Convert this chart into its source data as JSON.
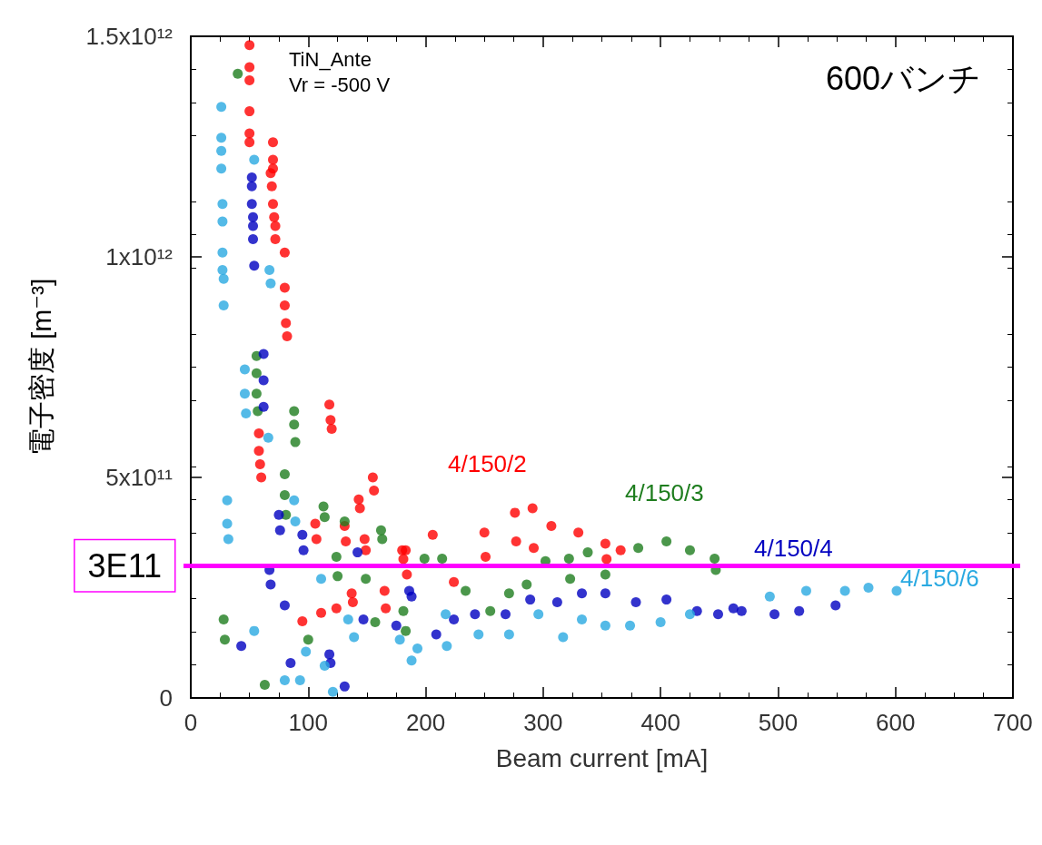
{
  "chart_data": {
    "type": "scatter",
    "xlabel": "Beam current [mA]",
    "ylabel": "電子密度 [m⁻³]",
    "xlim": [
      0,
      700
    ],
    "xticks": [
      0,
      100,
      200,
      300,
      400,
      500,
      600,
      700
    ],
    "ylim": [
      0,
      1500000000000.0
    ],
    "yticks": [
      {
        "value": 0,
        "label": "0"
      },
      {
        "value": 500000000000.0,
        "label": "5x10¹¹"
      },
      {
        "value": 1000000000000.0,
        "label": "1x10¹²"
      },
      {
        "value": 1500000000000.0,
        "label": "1.5x10¹²"
      }
    ],
    "grid": false,
    "legend": false,
    "marker": "circle",
    "ref_lines": [
      {
        "axis": "y",
        "value": 300000000000.0,
        "label": "3E11",
        "color": "#ff00ff"
      }
    ],
    "annotations": [
      "TiN_Ante",
      "Vr = -500 V",
      "600バンチ"
    ],
    "series": [
      {
        "name": "4/150/2",
        "color": "#ff0000",
        "x": [
          50,
          50,
          50,
          50,
          50,
          50,
          70,
          70,
          70,
          68,
          69,
          70,
          71,
          72,
          72,
          80,
          80,
          80,
          81,
          82,
          58,
          58,
          59,
          60,
          118,
          119,
          120,
          155,
          156,
          143,
          144,
          106,
          107,
          131,
          132,
          148,
          149,
          180,
          181,
          137,
          138,
          124,
          111,
          95,
          165,
          166,
          183,
          184,
          206,
          224,
          250,
          251,
          276,
          277,
          291,
          292,
          307,
          330,
          353,
          354,
          366
        ],
        "values": [
          1480000000000.0,
          1430000000000.0,
          1400000000000.0,
          1330000000000.0,
          1280000000000.0,
          1260000000000.0,
          1260000000000.0,
          1220000000000.0,
          1200000000000.0,
          1190000000000.0,
          1160000000000.0,
          1120000000000.0,
          1090000000000.0,
          1070000000000.0,
          1040000000000.0,
          1010000000000.0,
          930000000000.0,
          890000000000.0,
          850000000000.0,
          820000000000.0,
          600000000000.0,
          560000000000.0,
          530000000000.0,
          500000000000.0,
          665000000000.0,
          630000000000.0,
          610000000000.0,
          500000000000.0,
          470000000000.0,
          450000000000.0,
          430000000000.0,
          395000000000.0,
          360000000000.0,
          390000000000.0,
          355000000000.0,
          360000000000.0,
          335000000000.0,
          335000000000.0,
          315000000000.0,
          237000000000.0,
          217000000000.0,
          203000000000.0,
          193000000000.0,
          174000000000.0,
          243000000000.0,
          203000000000.0,
          335000000000.0,
          280000000000.0,
          370000000000.0,
          263000000000.0,
          375000000000.0,
          320000000000.0,
          420000000000.0,
          355000000000.0,
          430000000000.0,
          340000000000.0,
          390000000000.0,
          375000000000.0,
          350000000000.0,
          315000000000.0,
          335000000000.0
        ]
      },
      {
        "name": "4/150/3",
        "color": "#1e7d1e",
        "x": [
          40,
          56,
          56,
          56,
          57,
          88,
          88,
          89,
          80,
          80,
          81,
          113,
          114,
          131,
          162,
          163,
          124,
          125,
          149,
          28,
          29,
          100,
          63,
          157,
          180,
          181,
          183,
          199,
          214,
          234,
          255,
          271,
          286,
          302,
          322,
          323,
          338,
          353,
          381,
          405,
          425,
          446,
          447
        ],
        "values": [
          1415000000000.0,
          775000000000.0,
          736000000000.0,
          690000000000.0,
          650000000000.0,
          650000000000.0,
          620000000000.0,
          580000000000.0,
          507000000000.0,
          460000000000.0,
          415000000000.0,
          434000000000.0,
          410000000000.0,
          400000000000.0,
          380000000000.0,
          360000000000.0,
          320000000000.0,
          276000000000.0,
          270000000000.0,
          178000000000.0,
          132000000000.0,
          132000000000.0,
          30000000000.0,
          172000000000.0,
          null,
          197000000000.0,
          152000000000.0,
          316000000000.0,
          316000000000.0,
          243000000000.0,
          197000000000.0,
          237000000000.0,
          257000000000.0,
          310000000000.0,
          316000000000.0,
          270000000000.0,
          330000000000.0,
          280000000000.0,
          340000000000.0,
          355000000000.0,
          335000000000.0,
          316000000000.0,
          290000000000.0
        ]
      },
      {
        "name": "4/150/4",
        "color": "#0000c0",
        "x": [
          52,
          52,
          52,
          53,
          53,
          53,
          54,
          62,
          62,
          62,
          75,
          76,
          95,
          96,
          67,
          68,
          80,
          43,
          85,
          118,
          119,
          131,
          142,
          147,
          188,
          175,
          186,
          209,
          224,
          242,
          268,
          289,
          312,
          333,
          353,
          379,
          405,
          431,
          462,
          449,
          469,
          497,
          518,
          549
        ],
        "values": [
          1180000000000.0,
          1160000000000.0,
          1120000000000.0,
          1090000000000.0,
          1070000000000.0,
          1040000000000.0,
          980000000000.0,
          780000000000.0,
          720000000000.0,
          660000000000.0,
          415000000000.0,
          380000000000.0,
          370000000000.0,
          335000000000.0,
          290000000000.0,
          257000000000.0,
          210000000000.0,
          118000000000.0,
          79000000000.0,
          99000000000.0,
          79000000000.0,
          26000000000.0,
          330000000000.0,
          178000000000.0,
          230000000000.0,
          164000000000.0,
          243000000000.0,
          144000000000.0,
          178000000000.0,
          190000000000.0,
          190000000000.0,
          223000000000.0,
          217000000000.0,
          237000000000.0,
          237000000000.0,
          217000000000.0,
          223000000000.0,
          197000000000.0,
          203000000000.0,
          190000000000.0,
          197000000000.0,
          190000000000.0,
          197000000000.0,
          210000000000.0
        ]
      },
      {
        "name": "4/150/6",
        "color": "#29a9e1",
        "x": [
          26,
          26,
          26,
          26,
          27,
          27,
          27,
          27,
          28,
          28,
          54,
          67,
          68,
          46,
          46,
          47,
          66,
          31,
          31,
          32,
          88,
          89,
          54,
          111,
          134,
          98,
          80,
          93,
          121,
          139,
          114,
          178,
          188,
          193,
          217,
          218,
          245,
          271,
          296,
          317,
          333,
          353,
          374,
          400,
          425,
          493,
          524,
          557,
          577,
          601
        ],
        "values": [
          1340000000000.0,
          1270000000000.0,
          1240000000000.0,
          1200000000000.0,
          1120000000000.0,
          1080000000000.0,
          1010000000000.0,
          970000000000.0,
          950000000000.0,
          890000000000.0,
          1220000000000.0,
          970000000000.0,
          940000000000.0,
          745000000000.0,
          690000000000.0,
          645000000000.0,
          590000000000.0,
          448000000000.0,
          395000000000.0,
          360000000000.0,
          448000000000.0,
          400000000000.0,
          152000000000.0,
          270000000000.0,
          178000000000.0,
          105000000000.0,
          40000000000.0,
          40000000000.0,
          14000000000.0,
          138000000000.0,
          73000000000.0,
          132000000000.0,
          85000000000.0,
          112000000000.0,
          190000000000.0,
          118000000000.0,
          144000000000.0,
          144000000000.0,
          190000000000.0,
          138000000000.0,
          178000000000.0,
          164000000000.0,
          164000000000.0,
          172000000000.0,
          190000000000.0,
          230000000000.0,
          243000000000.0,
          243000000000.0,
          250000000000.0,
          243000000000.0
        ]
      }
    ]
  }
}
